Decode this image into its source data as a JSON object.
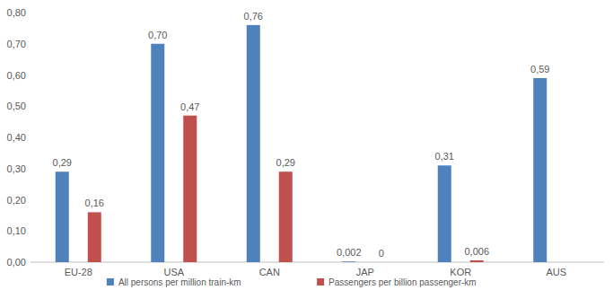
{
  "chart_data": {
    "type": "bar",
    "categories": [
      "EU-28",
      "USA",
      "CAN",
      "JAP",
      "KOR",
      "AUS"
    ],
    "series": [
      {
        "name": "All persons per million train-km",
        "color": "#4f81bd",
        "values": [
          0.29,
          0.7,
          0.76,
          0.002,
          0.31,
          0.59
        ],
        "value_labels": [
          "0,29",
          "0,70",
          "0,76",
          "0,002",
          "0,31",
          "0,59"
        ]
      },
      {
        "name": "Passengers per billion passenger-km",
        "color": "#c0504d",
        "values": [
          0.16,
          0.47,
          0.29,
          0,
          0.006,
          null
        ],
        "value_labels": [
          "0,16",
          "0,47",
          "0,29",
          "0",
          "0,006",
          null
        ]
      }
    ],
    "ylim": [
      0,
      0.8
    ],
    "yticks": [
      {
        "value": 0,
        "label": "0,00"
      },
      {
        "value": 0.1,
        "label": "0,10"
      },
      {
        "value": 0.2,
        "label": "0,20"
      },
      {
        "value": 0.3,
        "label": "0,30"
      },
      {
        "value": 0.4,
        "label": "0,40"
      },
      {
        "value": 0.5,
        "label": "0,50"
      },
      {
        "value": 0.6,
        "label": "0,60"
      },
      {
        "value": 0.7,
        "label": "0,70"
      },
      {
        "value": 0.8,
        "label": "0,80"
      }
    ],
    "grid": false,
    "legend": "bottom",
    "data_labels": true
  }
}
